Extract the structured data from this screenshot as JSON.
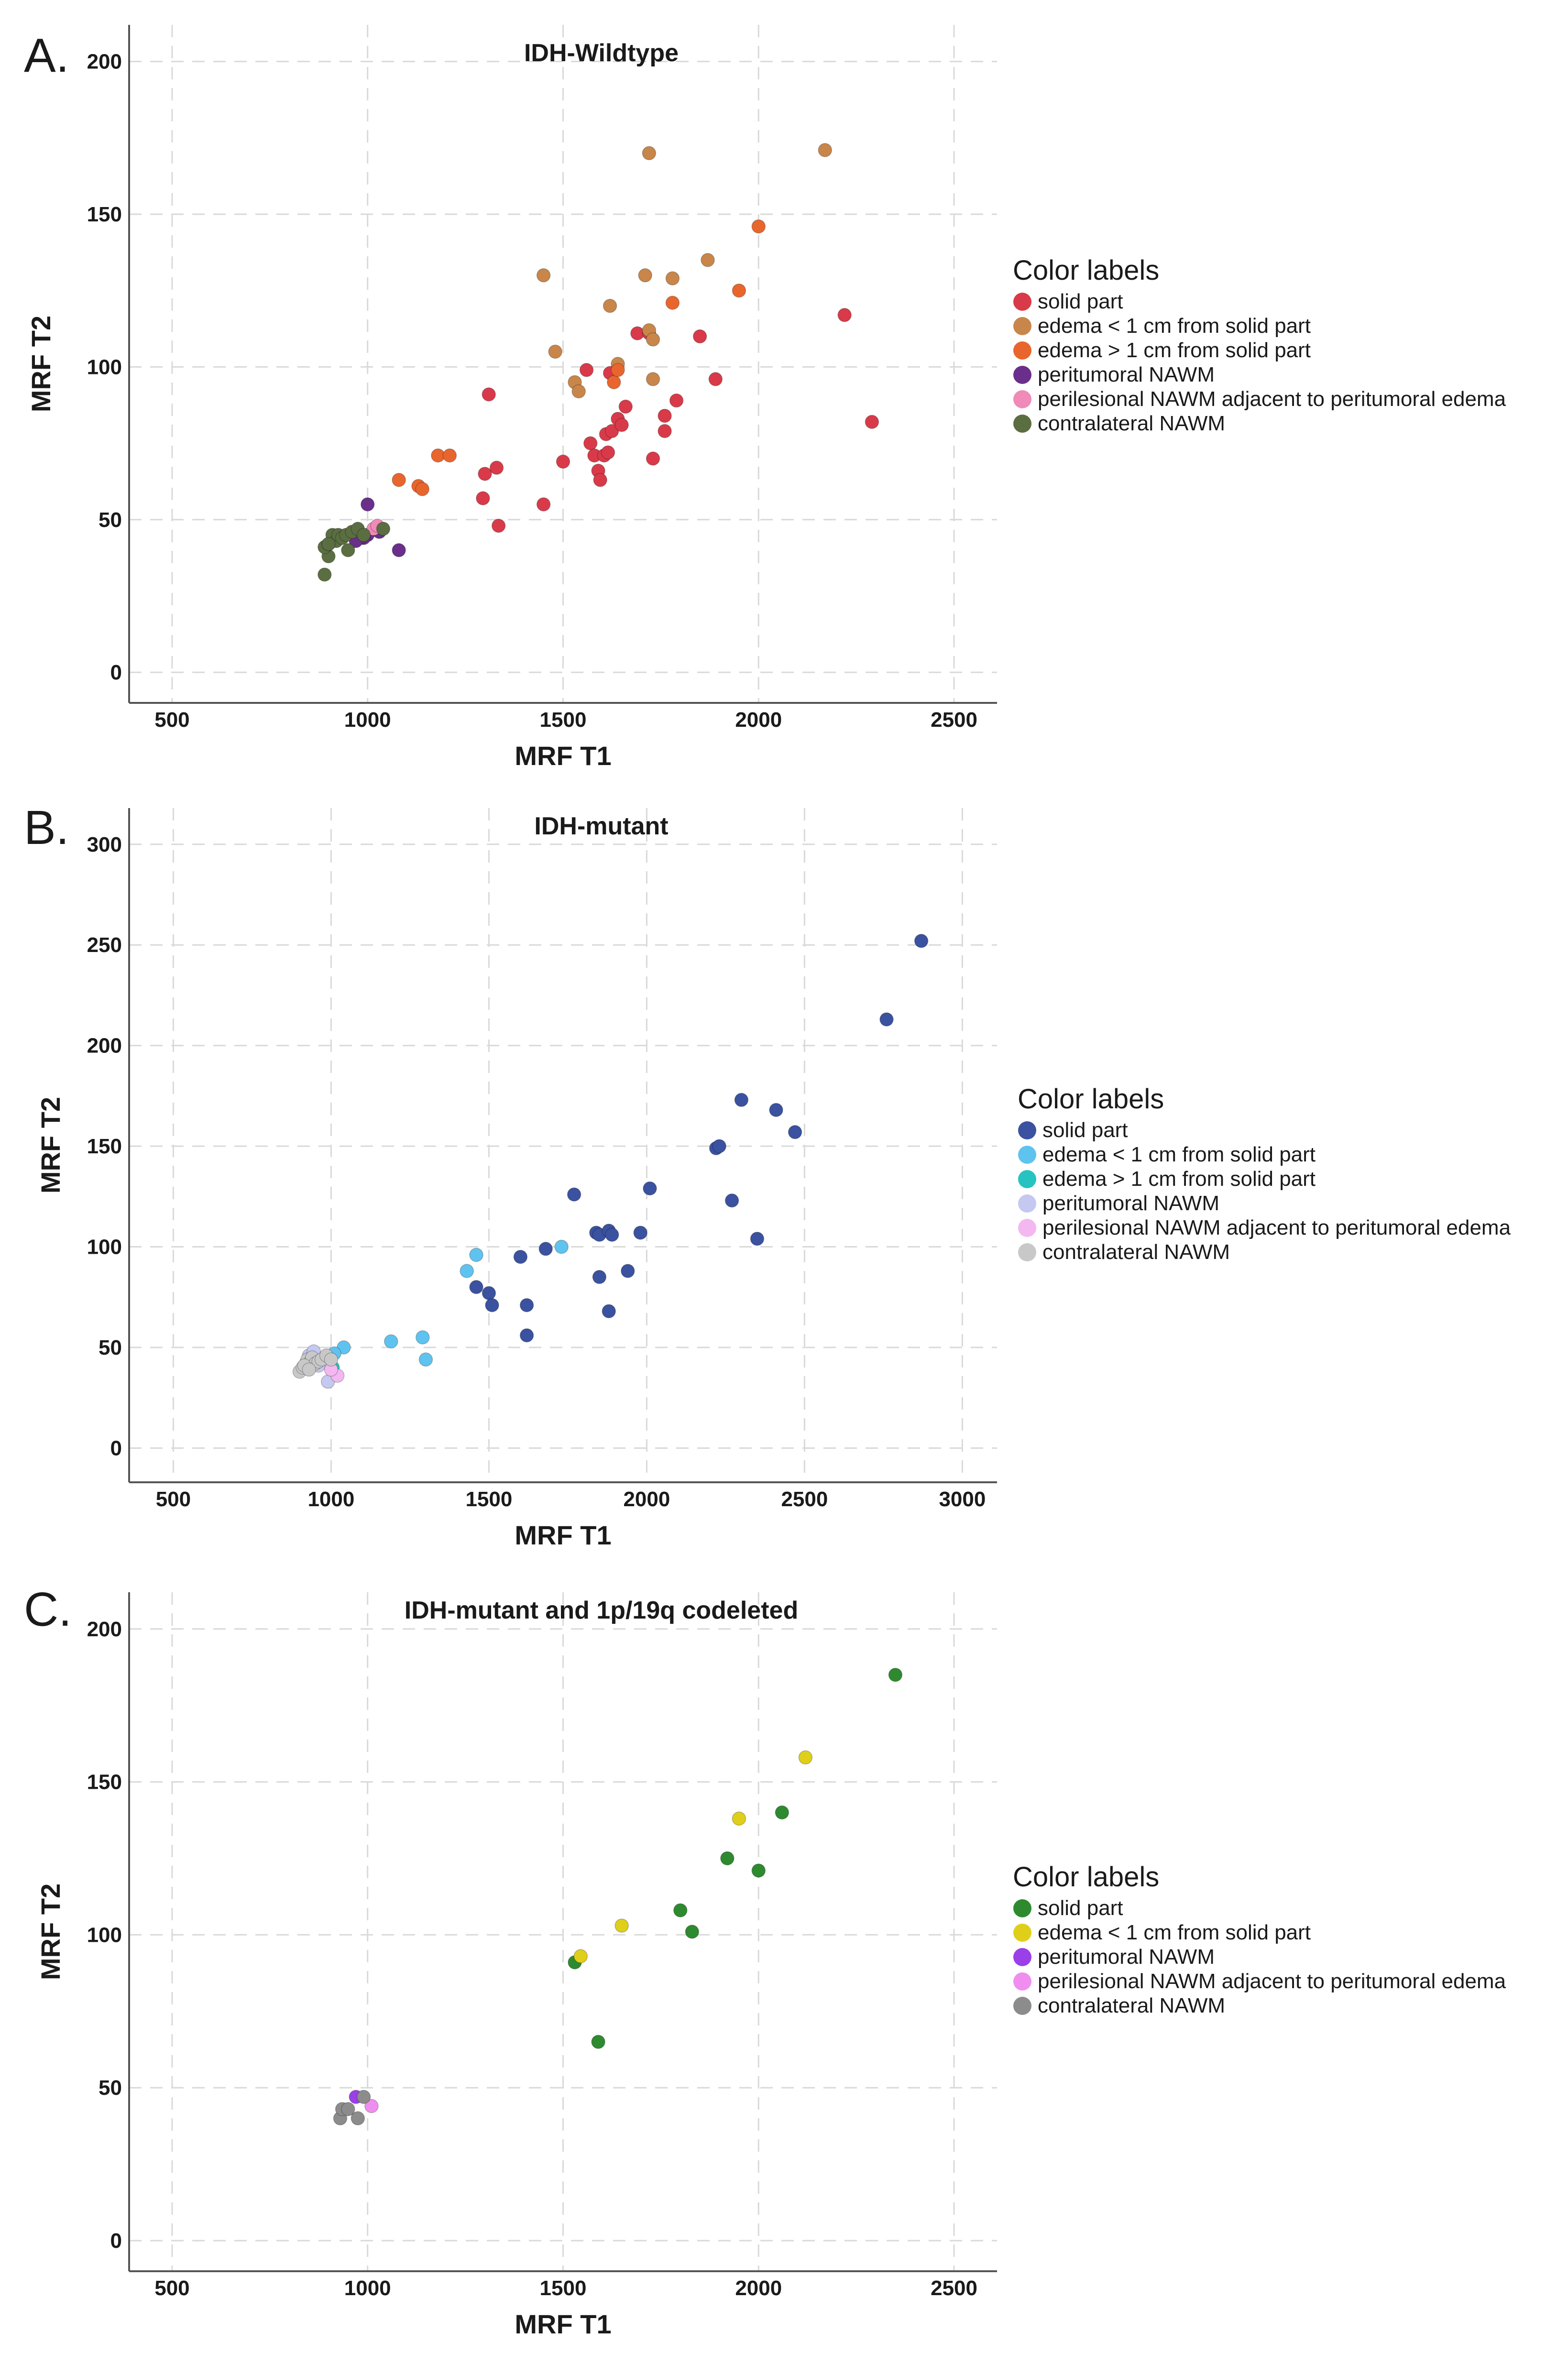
{
  "chart_data": [
    {
      "panel_label": "A.",
      "type": "scatter",
      "title": "IDH-Wildtype",
      "xlabel": "MRF T1",
      "ylabel": "MRF T2",
      "xlim": [
        390,
        2610
      ],
      "ylim": [
        -10,
        212
      ],
      "xticks": [
        500,
        1000,
        1500,
        2000,
        2500
      ],
      "yticks": [
        0,
        50,
        100,
        150,
        200
      ],
      "xtick_labels": [
        "500",
        "1000",
        "1500",
        "2000",
        "2500"
      ],
      "ytick_labels": [
        "0",
        "50",
        "100",
        "150",
        "200"
      ],
      "grid": true,
      "legend_title": "Color labels",
      "legend_position": "right",
      "series": [
        {
          "name": "solid part",
          "color": "#d93a4a",
          "points": [
            [
              1310,
              91
            ],
            [
              1300,
              65
            ],
            [
              1330,
              67
            ],
            [
              1295,
              57
            ],
            [
              1335,
              48
            ],
            [
              1450,
              55
            ],
            [
              1500,
              69
            ],
            [
              1560,
              99
            ],
            [
              1570,
              75
            ],
            [
              1580,
              71
            ],
            [
              1590,
              66
            ],
            [
              1595,
              63
            ],
            [
              1605,
              71
            ],
            [
              1610,
              78
            ],
            [
              1615,
              72
            ],
            [
              1625,
              79
            ],
            [
              1640,
              83
            ],
            [
              1650,
              81
            ],
            [
              1660,
              87
            ],
            [
              1690,
              111
            ],
            [
              1720,
              111
            ],
            [
              1730,
              70
            ],
            [
              1760,
              84
            ],
            [
              1760,
              79
            ],
            [
              1790,
              89
            ],
            [
              1850,
              110
            ],
            [
              1890,
              96
            ],
            [
              2220,
              117
            ],
            [
              2290,
              82
            ],
            [
              1620,
              98
            ]
          ]
        },
        {
          "name": "edema < 1 cm from solid part",
          "color": "#c8864a",
          "points": [
            [
              1450,
              130
            ],
            [
              1480,
              105
            ],
            [
              1530,
              95
            ],
            [
              1540,
              92
            ],
            [
              1620,
              120
            ],
            [
              1640,
              101
            ],
            [
              1720,
              170
            ],
            [
              1710,
              130
            ],
            [
              1720,
              112
            ],
            [
              1730,
              109
            ],
            [
              1730,
              96
            ],
            [
              1780,
              129
            ],
            [
              1870,
              135
            ],
            [
              2170,
              171
            ]
          ]
        },
        {
          "name": "edema > 1 cm from solid part",
          "color": "#e8662d",
          "points": [
            [
              1080,
              63
            ],
            [
              1130,
              61
            ],
            [
              1140,
              60
            ],
            [
              1180,
              71
            ],
            [
              1210,
              71
            ],
            [
              1630,
              95
            ],
            [
              1640,
              99
            ],
            [
              1780,
              121
            ],
            [
              1950,
              125
            ],
            [
              2000,
              146
            ]
          ]
        },
        {
          "name": "peritumoral NAWM",
          "color": "#6a2f8a",
          "points": [
            [
              1000,
              55
            ],
            [
              1000,
              45
            ],
            [
              990,
              44
            ],
            [
              980,
              44
            ],
            [
              970,
              43
            ],
            [
              1080,
              40
            ],
            [
              1030,
              46
            ]
          ]
        },
        {
          "name": "perilesional NAWM adjacent to peritumoral edema",
          "color": "#f08ab8",
          "points": [
            [
              1015,
              47
            ],
            [
              1025,
              48
            ]
          ]
        },
        {
          "name": "contralateral NAWM",
          "color": "#5b6e42",
          "points": [
            [
              890,
              32
            ],
            [
              900,
              38
            ],
            [
              890,
              41
            ],
            [
              900,
              42
            ],
            [
              910,
              45
            ],
            [
              920,
              43
            ],
            [
              925,
              45
            ],
            [
              935,
              44
            ],
            [
              945,
              45
            ],
            [
              950,
              40
            ],
            [
              960,
              46
            ],
            [
              975,
              47
            ],
            [
              990,
              45
            ],
            [
              1040,
              47
            ],
            [
              900,
              42
            ]
          ]
        }
      ]
    },
    {
      "panel_label": "B.",
      "type": "scatter",
      "title": "IDH-mutant",
      "xlabel": "MRF T1",
      "ylabel": "MRF T2",
      "xlim": [
        360,
        3110
      ],
      "ylim": [
        -17,
        318
      ],
      "xticks": [
        500,
        1000,
        1500,
        2000,
        2500,
        3000
      ],
      "yticks": [
        0,
        50,
        100,
        150,
        200,
        250,
        300
      ],
      "xtick_labels": [
        "500",
        "1000",
        "1500",
        "2000",
        "2500",
        "3000"
      ],
      "ytick_labels": [
        "0",
        "50",
        "100",
        "150",
        "200",
        "250",
        "300"
      ],
      "grid": true,
      "legend_title": "Color labels",
      "legend_position": "right",
      "series": [
        {
          "name": "solid part",
          "color": "#3a52a0",
          "points": [
            [
              2870,
              252
            ],
            [
              2760,
              213
            ],
            [
              2300,
              173
            ],
            [
              2410,
              168
            ],
            [
              2470,
              157
            ],
            [
              2220,
              149
            ],
            [
              2230,
              150
            ],
            [
              2270,
              123
            ],
            [
              2350,
              104
            ],
            [
              2010,
              129
            ],
            [
              1770,
              126
            ],
            [
              1840,
              107
            ],
            [
              1850,
              106
            ],
            [
              1880,
              108
            ],
            [
              1890,
              106
            ],
            [
              1980,
              107
            ],
            [
              1940,
              88
            ],
            [
              1850,
              85
            ],
            [
              1880,
              68
            ],
            [
              1680,
              99
            ],
            [
              1600,
              95
            ],
            [
              1460,
              80
            ],
            [
              1500,
              77
            ],
            [
              1510,
              71
            ],
            [
              1620,
              71
            ],
            [
              1620,
              56
            ]
          ]
        },
        {
          "name": "edema < 1 cm from solid part",
          "color": "#5fc3f0",
          "points": [
            [
              1430,
              88
            ],
            [
              1460,
              96
            ],
            [
              1730,
              100
            ],
            [
              1190,
              53
            ],
            [
              1290,
              55
            ],
            [
              1300,
              44
            ],
            [
              1040,
              50
            ],
            [
              1010,
              47
            ]
          ]
        },
        {
          "name": "edema > 1 cm from solid part",
          "color": "#26c3c0",
          "points": [
            [
              1005,
              40
            ]
          ]
        },
        {
          "name": "peritumoral NAWM",
          "color": "#c5c8f0",
          "points": [
            [
              930,
              46
            ],
            [
              950,
              44
            ],
            [
              960,
              41
            ],
            [
              990,
              33
            ],
            [
              945,
              48
            ]
          ]
        },
        {
          "name": "perilesional NAWM adjacent to peritumoral edema",
          "color": "#f3b8f0",
          "points": [
            [
              1020,
              36
            ],
            [
              1000,
              39
            ]
          ]
        },
        {
          "name": "contralateral NAWM",
          "color": "#c8c8c8",
          "points": [
            [
              900,
              38
            ],
            [
              910,
              40
            ],
            [
              920,
              42
            ],
            [
              925,
              44
            ],
            [
              935,
              43
            ],
            [
              940,
              45
            ],
            [
              950,
              42
            ],
            [
              960,
              43
            ],
            [
              970,
              44
            ],
            [
              985,
              46
            ],
            [
              1000,
              44
            ],
            [
              915,
              41
            ],
            [
              930,
              39
            ]
          ]
        }
      ]
    },
    {
      "panel_label": "C.",
      "type": "scatter",
      "title": "IDH-mutant and 1p/19q codeleted",
      "xlabel": "MRF T1",
      "ylabel": "MRF T2",
      "xlim": [
        390,
        2610
      ],
      "ylim": [
        -10,
        212
      ],
      "xticks": [
        500,
        1000,
        1500,
        2000,
        2500
      ],
      "yticks": [
        0,
        50,
        100,
        150,
        200
      ],
      "xtick_labels": [
        "500",
        "1000",
        "1500",
        "2000",
        "2500"
      ],
      "ytick_labels": [
        "0",
        "50",
        "100",
        "150",
        "200"
      ],
      "grid": true,
      "legend_title": "Color labels",
      "legend_position": "right",
      "series": [
        {
          "name": "solid part",
          "color": "#2e8a2e",
          "points": [
            [
              2350,
              185
            ],
            [
              2060,
              140
            ],
            [
              2000,
              121
            ],
            [
              1920,
              125
            ],
            [
              1800,
              108
            ],
            [
              1830,
              101
            ],
            [
              1530,
              91
            ],
            [
              1590,
              65
            ]
          ]
        },
        {
          "name": "edema < 1 cm from solid part",
          "color": "#e0cf1a",
          "points": [
            [
              2120,
              158
            ],
            [
              1950,
              138
            ],
            [
              1650,
              103
            ],
            [
              1545,
              93
            ]
          ]
        },
        {
          "name": "peritumoral NAWM",
          "color": "#9b3fe8",
          "points": [
            [
              970,
              47
            ]
          ]
        },
        {
          "name": "perilesional NAWM adjacent to peritumoral edema",
          "color": "#f08ef0",
          "points": [
            [
              1010,
              44
            ]
          ]
        },
        {
          "name": "contralateral NAWM",
          "color": "#8c8c8c",
          "points": [
            [
              930,
              40
            ],
            [
              935,
              43
            ],
            [
              950,
              43
            ],
            [
              975,
              40
            ],
            [
              990,
              47
            ]
          ]
        }
      ]
    }
  ]
}
